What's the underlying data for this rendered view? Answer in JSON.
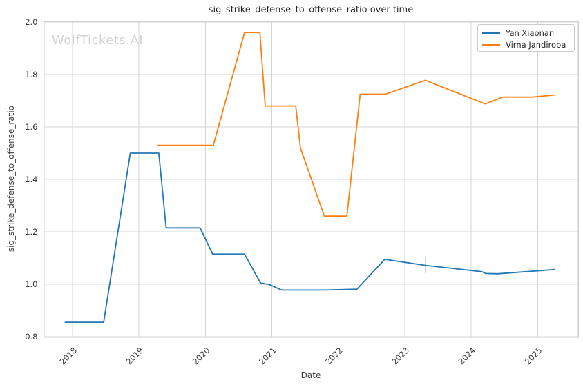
{
  "watermark": "WolfTickets.AI",
  "chart_data": {
    "type": "line",
    "title": "sig_strike_defense_to_offense_ratio over time",
    "xlabel": "Date",
    "ylabel": "sig_strike_defense_to_offense_ratio",
    "x_ticks": [
      2018,
      2019,
      2020,
      2021,
      2022,
      2023,
      2024,
      2025
    ],
    "y_ticks": [
      0.8,
      1.0,
      1.2,
      1.4,
      1.6,
      1.8,
      2.0
    ],
    "xlim": [
      2017.57,
      2025.61
    ],
    "ylim": [
      0.8,
      2.0
    ],
    "grid": true,
    "legend": {
      "position": "upper right"
    },
    "style": {
      "background": "#ffffff",
      "grid_color": "#d4d4d4",
      "spine_color": "#cccccc",
      "tick_color": "#3a3a3a",
      "title_color": "#262626",
      "watermark_color": "#d4d4d4"
    },
    "series": [
      {
        "name": "Yan Xiaonan",
        "color": "#1f77b4",
        "points": [
          [
            2017.89,
            0.855
          ],
          [
            2018.47,
            0.855
          ],
          [
            2018.87,
            1.5
          ],
          [
            2019.3,
            1.5
          ],
          [
            2019.41,
            1.215
          ],
          [
            2019.92,
            1.215
          ],
          [
            2020.11,
            1.115
          ],
          [
            2020.59,
            1.115
          ],
          [
            2020.83,
            1.005
          ],
          [
            2020.96,
            0.999
          ],
          [
            2021.15,
            0.978
          ],
          [
            2021.8,
            0.978
          ],
          [
            2022.28,
            0.981
          ],
          [
            2022.7,
            1.095
          ],
          [
            2023.31,
            1.072
          ],
          [
            2024.16,
            1.048
          ],
          [
            2024.22,
            1.041
          ],
          [
            2024.4,
            1.04
          ],
          [
            2025.05,
            1.052
          ],
          [
            2025.26,
            1.056
          ]
        ]
      },
      {
        "name": "Virna Jandiroba",
        "color": "#ff7f0e",
        "points": [
          [
            2019.29,
            1.53
          ],
          [
            2020.12,
            1.53
          ],
          [
            2020.59,
            1.96
          ],
          [
            2020.82,
            1.96
          ],
          [
            2020.9,
            1.68
          ],
          [
            2021.36,
            1.68
          ],
          [
            2021.43,
            1.52
          ],
          [
            2021.79,
            1.26
          ],
          [
            2022.13,
            1.26
          ],
          [
            2022.33,
            1.725
          ],
          [
            2022.71,
            1.725
          ],
          [
            2023.31,
            1.778
          ],
          [
            2024.21,
            1.688
          ],
          [
            2024.48,
            1.714
          ],
          [
            2024.92,
            1.714
          ],
          [
            2025.26,
            1.722
          ]
        ]
      }
    ],
    "annotations": {
      "error_bar": {
        "x": 2023.31,
        "y_low": 1.043,
        "y_high": 1.103,
        "color": "#b9d5ec"
      }
    }
  }
}
